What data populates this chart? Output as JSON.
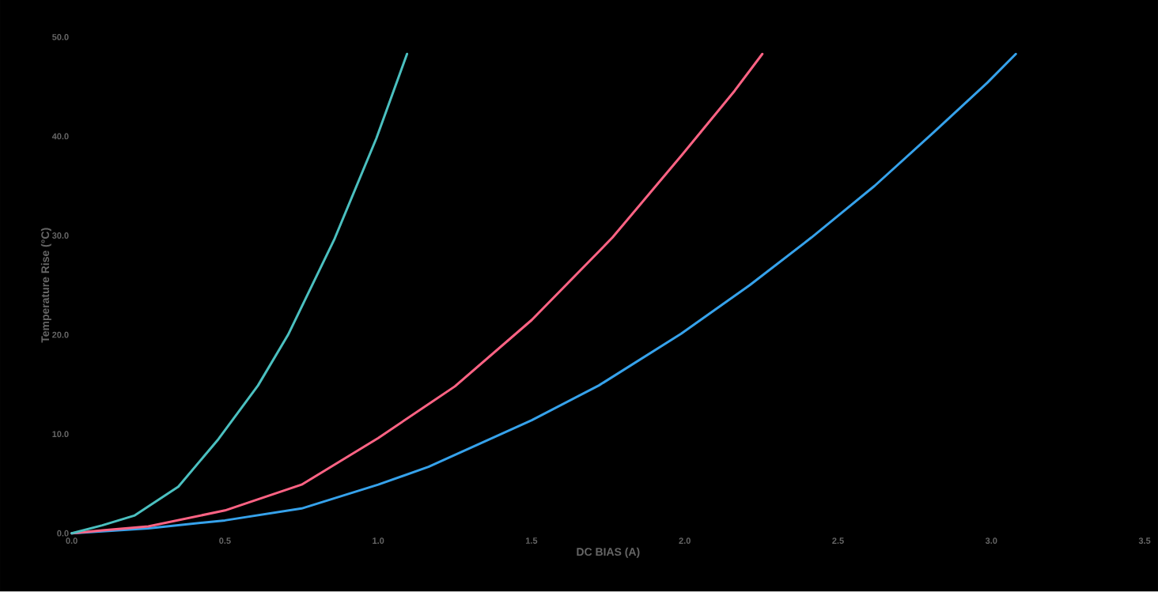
{
  "chart_data": {
    "type": "line",
    "xlabel": "DC BIAS (A)",
    "ylabel": "Temperature Rise (°C)",
    "xlim": [
      0,
      3.5
    ],
    "ylim": [
      0,
      50
    ],
    "xticks": [
      {
        "value": 0,
        "label": "0.0"
      },
      {
        "value": 0.5,
        "label": "0.5"
      },
      {
        "value": 1,
        "label": "1.0"
      },
      {
        "value": 1.5,
        "label": "1.5"
      },
      {
        "value": 2,
        "label": "2.0"
      },
      {
        "value": 2.5,
        "label": "2.5"
      },
      {
        "value": 3,
        "label": "3.0"
      },
      {
        "value": 3.5,
        "label": "3.5"
      }
    ],
    "yticks": [
      {
        "value": 0,
        "label": "0.0"
      },
      {
        "value": 10,
        "label": "10.0"
      },
      {
        "value": 20,
        "label": "20.0"
      },
      {
        "value": 30,
        "label": "30.0"
      },
      {
        "value": 40,
        "label": "40.0"
      },
      {
        "value": 50,
        "label": "50.0"
      }
    ],
    "grid": false,
    "marker": "none",
    "line_style": "solid",
    "series": [
      {
        "color": "#36a2eb",
        "x": [
          0,
          0.25,
          0.5,
          0.75,
          1.0,
          1.164,
          1.501,
          1.72,
          1.988,
          2.212,
          2.413,
          2.619,
          2.812,
          2.987,
          3.08
        ],
        "values": [
          0,
          0.5,
          1.3,
          2.5,
          4.9,
          6.7,
          11.4,
          14.9,
          20.1,
          25.0,
          29.8,
          35.0,
          40.4,
          45.4,
          48.3
        ]
      },
      {
        "color": "#ff6384",
        "x": [
          0,
          0.1,
          0.25,
          0.5,
          0.75,
          1.0,
          1.25,
          1.501,
          1.764,
          1.993,
          2.163,
          2.253
        ],
        "values": [
          0,
          0.3,
          0.7,
          2.3,
          4.9,
          9.6,
          14.8,
          21.5,
          29.8,
          38.2,
          44.6,
          48.3
        ]
      },
      {
        "color": "#4bc0c0",
        "x": [
          0,
          0.1,
          0.206,
          0.348,
          0.479,
          0.608,
          0.706,
          0.858,
          0.994,
          1.094
        ],
        "values": [
          0,
          0.8,
          1.8,
          4.7,
          9.5,
          14.9,
          20.0,
          29.7,
          39.8,
          48.3
        ]
      }
    ]
  }
}
